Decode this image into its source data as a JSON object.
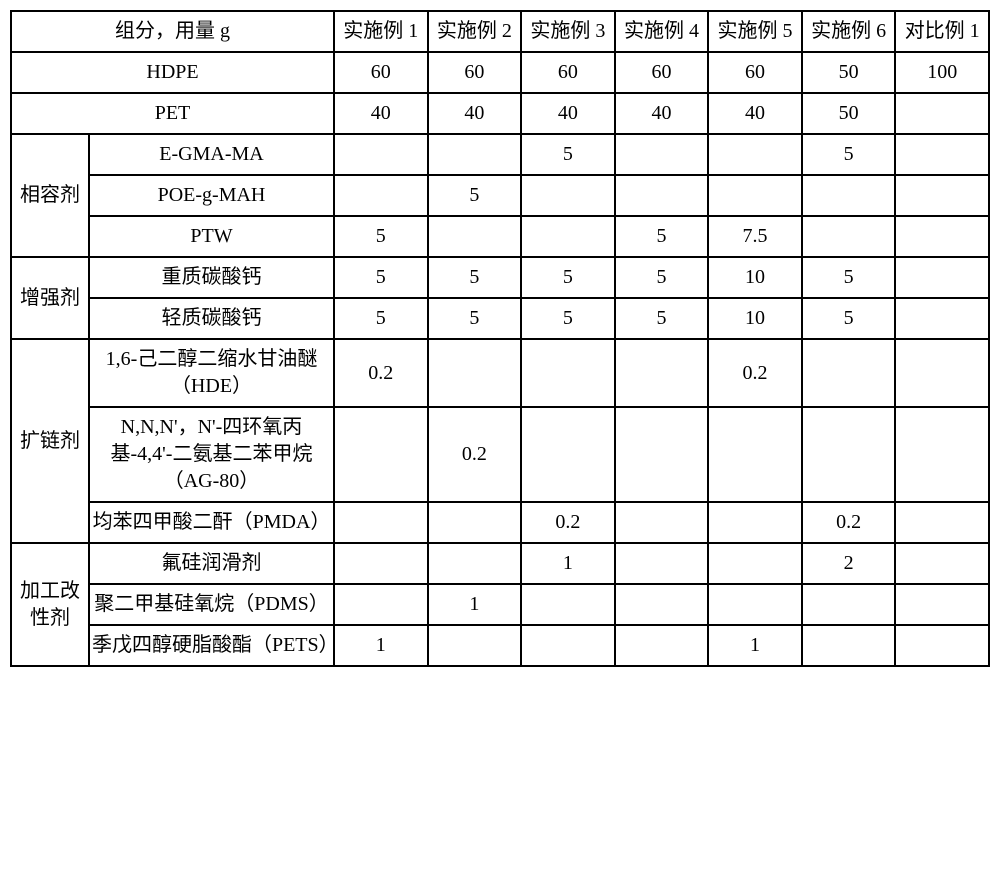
{
  "colors": {
    "border": "#000000",
    "background": "#ffffff",
    "text": "#000000"
  },
  "header": {
    "title": "组分，用量 g",
    "cols": [
      "实施例 1",
      "实施例 2",
      "实施例 3",
      "实施例 4",
      "实施例 5",
      "实施例 6",
      "对比例 1"
    ]
  },
  "simpleRows": [
    {
      "label": "HDPE",
      "values": [
        "60",
        "60",
        "60",
        "60",
        "60",
        "50",
        "100"
      ]
    },
    {
      "label": "PET",
      "values": [
        "40",
        "40",
        "40",
        "40",
        "40",
        "50",
        ""
      ]
    }
  ],
  "groups": [
    {
      "name": "相容剂",
      "rows": [
        {
          "label": "E-GMA-MA",
          "values": [
            "",
            "",
            "5",
            "",
            "",
            "5",
            ""
          ]
        },
        {
          "label": "POE-g-MAH",
          "values": [
            "",
            "5",
            "",
            "",
            "",
            "",
            ""
          ]
        },
        {
          "label": "PTW",
          "values": [
            "5",
            "",
            "",
            "5",
            "7.5",
            "",
            ""
          ]
        }
      ]
    },
    {
      "name": "增强剂",
      "rows": [
        {
          "label": "重质碳酸钙",
          "values": [
            "5",
            "5",
            "5",
            "5",
            "10",
            "5",
            ""
          ]
        },
        {
          "label": "轻质碳酸钙",
          "values": [
            "5",
            "5",
            "5",
            "5",
            "10",
            "5",
            ""
          ]
        }
      ]
    },
    {
      "name": "扩链剂",
      "rows": [
        {
          "label": "1,6-己二醇二缩水甘油醚（HDE）",
          "values": [
            "0.2",
            "",
            "",
            "",
            "0.2",
            "",
            ""
          ]
        },
        {
          "label": "N,N,N'，N'-四环氧丙基-4,4'-二氨基二苯甲烷（AG-80）",
          "values": [
            "",
            "0.2",
            "",
            "",
            "",
            "",
            ""
          ]
        },
        {
          "label": "均苯四甲酸二酐（PMDA）",
          "values": [
            "",
            "",
            "0.2",
            "",
            "",
            "0.2",
            ""
          ]
        }
      ]
    },
    {
      "name": "加工改性剂",
      "rows": [
        {
          "label": "氟硅润滑剂",
          "values": [
            "",
            "",
            "1",
            "",
            "",
            "2",
            ""
          ]
        },
        {
          "label": "聚二甲基硅氧烷（PDMS）",
          "values": [
            "",
            "1",
            "",
            "",
            "",
            "",
            ""
          ]
        },
        {
          "label": "季戊四醇硬脂酸酯（PETS）",
          "values": [
            "1",
            "",
            "",
            "",
            "1",
            "",
            ""
          ]
        }
      ]
    }
  ]
}
